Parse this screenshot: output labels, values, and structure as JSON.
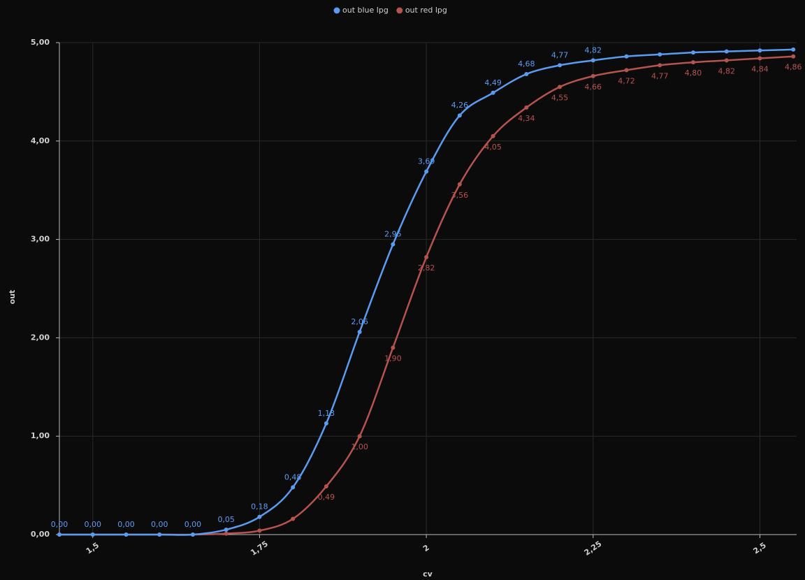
{
  "chart_data": {
    "type": "line",
    "x_label": "cv",
    "y_label": "out",
    "x": [
      1.45,
      1.5,
      1.55,
      1.6,
      1.65,
      1.7,
      1.75,
      1.8,
      1.85,
      1.9,
      1.95,
      2.0,
      2.05,
      2.1,
      2.15,
      2.2,
      2.25,
      2.3,
      2.35,
      2.4,
      2.45,
      2.5,
      2.55
    ],
    "series": [
      {
        "name": "out blue lpg",
        "color": "#5b9bf0",
        "values": [
          0,
          0,
          0,
          0,
          0,
          0.05,
          0.18,
          0.48,
          1.13,
          2.06,
          2.95,
          3.69,
          4.26,
          4.49,
          4.68,
          4.77,
          4.82,
          4.86,
          4.88,
          4.9,
          4.91,
          4.92,
          4.93
        ],
        "value_labels": [
          "0,00",
          "0,00",
          "0,00",
          "0,00",
          "0,00",
          "0,05",
          "0,18",
          "0,48",
          "1,13",
          "2,06",
          "2,95",
          "3,69",
          "4,26",
          "4,49",
          "4,68",
          "4,77",
          "4,82",
          null,
          null,
          null,
          null,
          null,
          null
        ]
      },
      {
        "name": "out red lpg",
        "color": "#b5534f",
        "values": [
          0,
          0,
          0,
          0,
          0,
          0.01,
          0.04,
          0.16,
          0.49,
          1.0,
          1.9,
          2.82,
          3.56,
          4.05,
          4.34,
          4.55,
          4.66,
          4.72,
          4.77,
          4.8,
          4.82,
          4.84,
          4.86
        ],
        "value_labels": [
          null,
          null,
          null,
          null,
          null,
          null,
          null,
          null,
          "0,49",
          "1,00",
          "1,90",
          "2,82",
          "3,56",
          "4,05",
          "4,34",
          "4,55",
          "4,66",
          "4,72",
          "4,77",
          "4,80",
          "4,82",
          "4,84",
          "4,86"
        ]
      }
    ],
    "xlim": [
      1.45,
      2.555
    ],
    "xticks": [
      {
        "value": 1.5,
        "label": "1,5"
      },
      {
        "value": 1.75,
        "label": "1,75"
      },
      2,
      {
        "value": 2.25,
        "label": "2,25"
      },
      {
        "value": 2.5,
        "label": "2,5"
      }
    ],
    "ylim": [
      0,
      5
    ],
    "yticks": [
      {
        "value": 0,
        "label": "0,00"
      },
      {
        "value": 1,
        "label": "1,00"
      },
      {
        "value": 2,
        "label": "2,00"
      },
      {
        "value": 3,
        "label": "3,00"
      },
      {
        "value": 4,
        "label": "4,00"
      },
      {
        "value": 5,
        "label": "5,00"
      }
    ],
    "grid": true,
    "legend": "top"
  }
}
